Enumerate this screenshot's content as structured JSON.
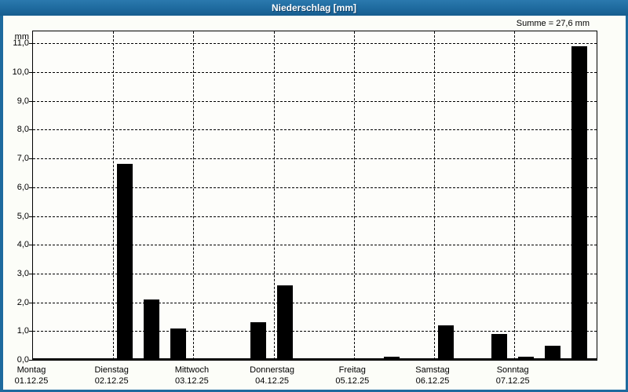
{
  "window": {
    "title": "Niederschlag [mm]",
    "summary_label": "Summe = 27,6 mm"
  },
  "chart_data": {
    "type": "bar",
    "title": "Niederschlag [mm]",
    "ylabel": "mm",
    "ylim": [
      0,
      11.4
    ],
    "ytick_values": [
      0,
      1,
      2,
      3,
      4,
      5,
      6,
      7,
      8,
      9,
      10,
      11
    ],
    "ytick_labels": [
      "0,0",
      "1,0",
      "2,0",
      "3,0",
      "4,0",
      "5,0",
      "6,0",
      "7,0",
      "8,0",
      "9,0",
      "10,0",
      "11,0"
    ],
    "grid": "dashed",
    "legend_position": "none",
    "bar_color": "#000000",
    "sum_mm": 27.6,
    "slots_per_day": 3,
    "days": [
      {
        "name": "Montag",
        "date": "01.12.25",
        "values": [
          0,
          0,
          0
        ]
      },
      {
        "name": "Dienstag",
        "date": "02.12.25",
        "values": [
          6.8,
          2.1,
          1.1
        ]
      },
      {
        "name": "Mittwoch",
        "date": "03.12.25",
        "values": [
          0,
          0,
          1.3
        ]
      },
      {
        "name": "Donnerstag",
        "date": "04.12.25",
        "values": [
          2.6,
          0,
          0
        ]
      },
      {
        "name": "Freitag",
        "date": "05.12.25",
        "values": [
          0,
          0.1,
          0
        ]
      },
      {
        "name": "Samstag",
        "date": "06.12.25",
        "values": [
          1.2,
          0,
          0.9
        ]
      },
      {
        "name": "Sonntag",
        "date": "07.12.25",
        "values": [
          0.1,
          0.5,
          10.9
        ]
      }
    ]
  },
  "colors": {
    "frame": "#1e6a9e",
    "header_text": "#ffffff",
    "content_background": "#fcfdf8",
    "bar": "#000000",
    "grid": "#000000"
  }
}
